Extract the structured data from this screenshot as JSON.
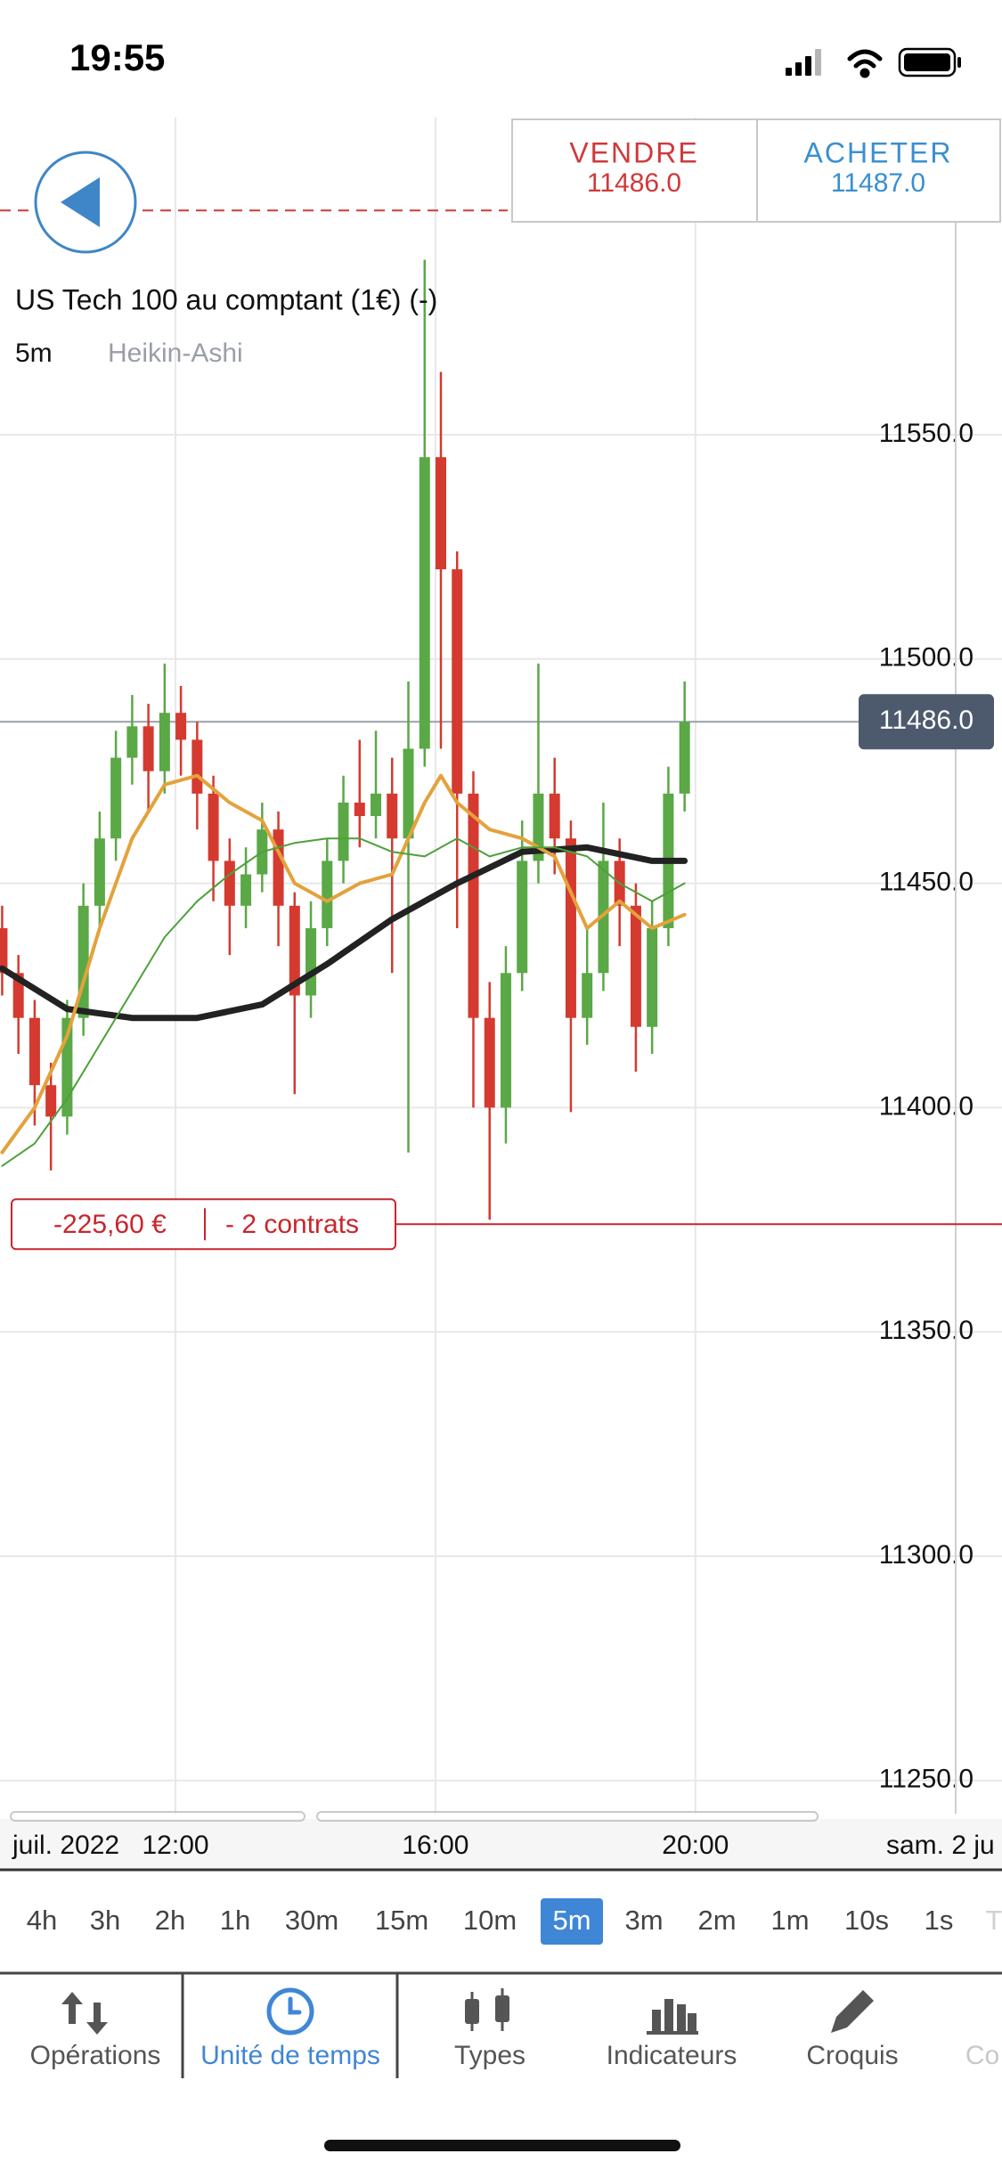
{
  "status_bar": {
    "time": "19:55"
  },
  "trade_buttons": {
    "sell": {
      "label": "VENDRE",
      "price": "11486.0",
      "color": "#d0393b"
    },
    "buy": {
      "label": "ACHETER",
      "price": "11487.0",
      "color": "#3a8fd0"
    }
  },
  "instrument": {
    "title": "US Tech 100 au comptant (1€) (-)",
    "timeframe": "5m",
    "chart_style": "Heikin-Ashi"
  },
  "chart_data": {
    "type": "candlestick",
    "x": [
      "09:20",
      "09:35",
      "09:50",
      "10:05",
      "10:20",
      "10:35",
      "10:50",
      "11:05",
      "11:20",
      "11:35",
      "11:50",
      "12:05",
      "12:20",
      "12:35",
      "12:50",
      "13:05",
      "13:20",
      "13:35",
      "13:50",
      "14:05",
      "14:20",
      "14:35",
      "14:50",
      "15:05",
      "15:20",
      "15:35",
      "15:50",
      "16:05",
      "16:20",
      "16:35",
      "16:50",
      "17:05",
      "17:20",
      "17:35",
      "17:50",
      "18:05",
      "18:20",
      "18:35",
      "18:50",
      "19:05",
      "19:20",
      "19:35",
      "19:50"
    ],
    "open": [
      11440,
      11430,
      11420,
      11405,
      11398,
      11420,
      11445,
      11460,
      11478,
      11485,
      11475,
      11488,
      11482,
      11470,
      11455,
      11445,
      11452,
      11462,
      11445,
      11425,
      11440,
      11455,
      11468,
      11465,
      11470,
      11460,
      11480,
      11545,
      11520,
      11470,
      11420,
      11400,
      11430,
      11455,
      11470,
      11460,
      11420,
      11430,
      11455,
      11445,
      11418,
      11440,
      11470
    ],
    "high": [
      11445,
      11434,
      11424,
      11410,
      11424,
      11450,
      11466,
      11484,
      11492,
      11490,
      11499,
      11494,
      11486,
      11474,
      11460,
      11458,
      11468,
      11466,
      11448,
      11446,
      11460,
      11474,
      11482,
      11484,
      11478,
      11495,
      11589,
      11564,
      11524,
      11475,
      11428,
      11436,
      11464,
      11499,
      11478,
      11464,
      11440,
      11468,
      11460,
      11450,
      11446,
      11476,
      11495
    ],
    "low": [
      11425,
      11412,
      11396,
      11386,
      11394,
      11416,
      11440,
      11455,
      11472,
      11466,
      11470,
      11474,
      11462,
      11446,
      11434,
      11440,
      11448,
      11436,
      11403,
      11420,
      11436,
      11450,
      11458,
      11460,
      11430,
      11390,
      11476,
      11480,
      11440,
      11400,
      11375,
      11392,
      11426,
      11450,
      11452,
      11399,
      11414,
      11426,
      11436,
      11408,
      11412,
      11436,
      11466
    ],
    "close": [
      11430,
      11420,
      11405,
      11398,
      11420,
      11445,
      11460,
      11478,
      11485,
      11475,
      11488,
      11482,
      11470,
      11455,
      11445,
      11452,
      11462,
      11445,
      11425,
      11440,
      11455,
      11468,
      11465,
      11470,
      11460,
      11480,
      11545,
      11520,
      11470,
      11420,
      11400,
      11430,
      11455,
      11470,
      11460,
      11420,
      11430,
      11455,
      11445,
      11418,
      11440,
      11470,
      11486
    ],
    "up_color": "#5aa846",
    "down_color": "#d43a2f",
    "series": [
      {
        "color": "#222222",
        "width": 7,
        "x": [
          "09:20",
          "10:20",
          "11:20",
          "12:20",
          "13:20",
          "14:20",
          "15:20",
          "16:20",
          "17:20",
          "18:20",
          "19:20",
          "19:50"
        ],
        "values": [
          11431,
          11422,
          11420,
          11420,
          11423,
          11432,
          11442,
          11450,
          11457,
          11458,
          11455,
          11455
        ]
      },
      {
        "color": "#e3a23c",
        "width": 4,
        "x": [
          "09:20",
          "09:50",
          "10:20",
          "10:50",
          "11:20",
          "11:50",
          "12:20",
          "12:50",
          "13:20",
          "13:50",
          "14:20",
          "14:50",
          "15:20",
          "15:50",
          "16:05",
          "16:20",
          "16:50",
          "17:20",
          "17:50",
          "18:20",
          "18:50",
          "19:20",
          "19:50"
        ],
        "values": [
          11390,
          11400,
          11416,
          11440,
          11460,
          11472,
          11474,
          11468,
          11464,
          11450,
          11446,
          11450,
          11452,
          11468,
          11474,
          11468,
          11462,
          11460,
          11456,
          11440,
          11446,
          11440,
          11443
        ]
      },
      {
        "color": "#4ea03a",
        "width": 2,
        "x": [
          "09:20",
          "09:50",
          "10:20",
          "10:50",
          "11:20",
          "11:50",
          "12:20",
          "12:50",
          "13:20",
          "13:50",
          "14:20",
          "14:50",
          "15:20",
          "15:50",
          "16:20",
          "16:50",
          "17:20",
          "17:50",
          "18:20",
          "18:50",
          "19:20",
          "19:50"
        ],
        "values": [
          11387,
          11392,
          11402,
          11414,
          11426,
          11438,
          11446,
          11452,
          11457,
          11459,
          11460,
          11460,
          11457,
          11456,
          11460,
          11456,
          11458,
          11458,
          11456,
          11450,
          11446,
          11450
        ]
      }
    ],
    "xlim": [
      "09:18",
      "24:43"
    ],
    "xticks": [
      "12:00",
      "16:00",
      "20:00"
    ],
    "ylim": [
      11242.6,
      11620.7
    ],
    "yticks": [
      {
        "value": 11550,
        "label": "11550.0"
      },
      {
        "value": 11500,
        "label": "11500.0"
      },
      {
        "value": 11450,
        "label": "11450.0"
      },
      {
        "value": 11400,
        "label": "11400.0"
      },
      {
        "value": 11350,
        "label": "11350.0"
      },
      {
        "value": 11300,
        "label": "11300.0"
      },
      {
        "value": 11250,
        "label": "11250.0"
      }
    ],
    "grid": true,
    "current_price": {
      "value": 11486,
      "label": "11486.0"
    },
    "order_level": 11600,
    "position": {
      "level": 11374,
      "pnl": "-225,60 €",
      "size": "- 2 contrats"
    },
    "date_labels": [
      "juil. 2022",
      "sam. 2 ju"
    ]
  },
  "timeframes": {
    "items": [
      "4h",
      "3h",
      "2h",
      "1h",
      "30m",
      "15m",
      "10m",
      "5m",
      "3m",
      "2m",
      "1m",
      "10s",
      "1s",
      "T"
    ],
    "selected": 7
  },
  "tabs": {
    "items": [
      "Opérations",
      "Unité de temps",
      "Types",
      "Indicateurs",
      "Croquis",
      "Co"
    ],
    "selected": 1
  }
}
